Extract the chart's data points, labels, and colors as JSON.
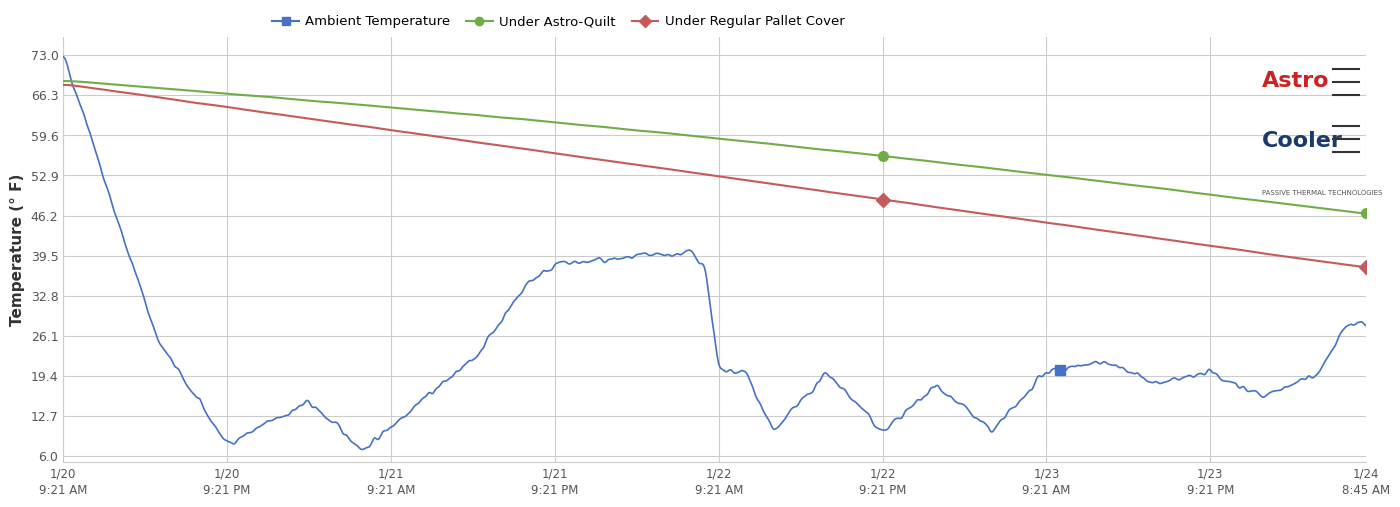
{
  "title": "",
  "ylabel": "Temperature (° F)",
  "yticks": [
    6.0,
    12.7,
    19.4,
    26.1,
    32.8,
    39.5,
    46.2,
    52.9,
    59.6,
    66.3,
    73.0
  ],
  "ylim": [
    5.0,
    75.0
  ],
  "xtick_labels": [
    "1/20\n9:21 AM",
    "1/20\n9:21 PM",
    "1/21\n9:21 AM",
    "1/21\n9:21 PM",
    "1/22\n9:21 AM",
    "1/22\n9:21 PM",
    "1/23\n9:21 AM",
    "1/23\n9:21 PM",
    "1/24\n8:45 AM"
  ],
  "xtick_positions": [
    0,
    12,
    24,
    36,
    48,
    60,
    72,
    84,
    95.4
  ],
  "bg_color": "#ffffff",
  "grid_color": "#cccccc",
  "ambient_color": "#4472C4",
  "quilt_color": "#70AD47",
  "pallet_color": "#C55A5A",
  "legend_ambient": "Ambient Temperature",
  "legend_quilt": "Under Astro-Quilt",
  "legend_pallet": "Under Regular Pallet Cover"
}
